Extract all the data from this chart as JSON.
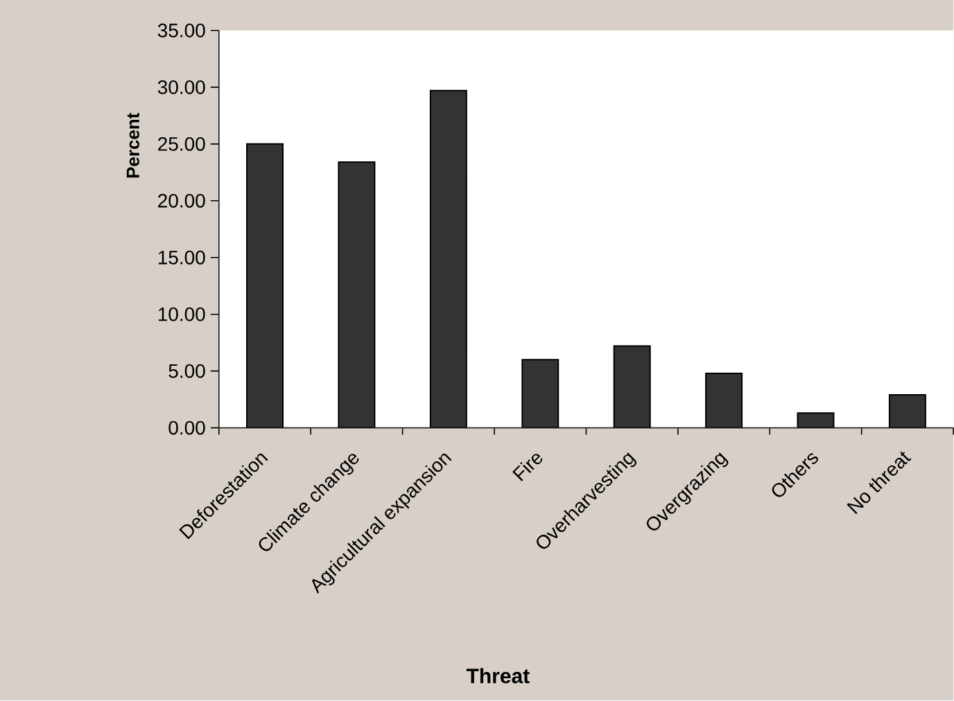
{
  "chart_data": {
    "type": "bar",
    "xlabel": "Threat",
    "ylabel": "Percent",
    "categories": [
      "Deforestation",
      "Climate change",
      "Agricultural expansion",
      "Fire",
      "Overharvesting",
      "Overgrazing",
      "Others",
      "No threat"
    ],
    "values": [
      25.0,
      23.4,
      29.7,
      6.0,
      7.2,
      4.8,
      1.3,
      2.9
    ],
    "color": "#333333",
    "ylim": [
      0,
      35
    ],
    "yticks": [
      {
        "value": 0,
        "label": "0.00"
      },
      {
        "value": 5,
        "label": "5.00"
      },
      {
        "value": 10,
        "label": "10.00"
      },
      {
        "value": 15,
        "label": "15.00"
      },
      {
        "value": 20,
        "label": "20.00"
      },
      {
        "value": 25,
        "label": "25.00"
      },
      {
        "value": 30,
        "label": "30.00"
      },
      {
        "value": 35,
        "label": "35.00"
      }
    ],
    "grid": false
  }
}
